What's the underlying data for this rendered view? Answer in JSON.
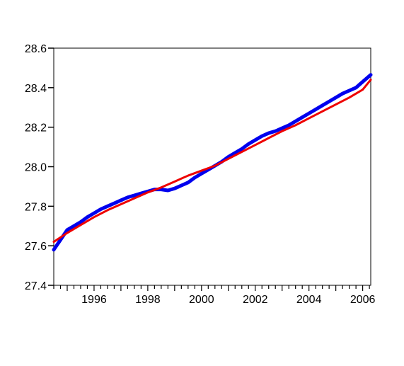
{
  "chart_data": {
    "type": "line",
    "title": "",
    "xlabel": "",
    "ylabel": "",
    "xlim": [
      1994.5,
      2006.3
    ],
    "ylim": [
      27.4,
      28.6
    ],
    "x_tick_labels": [
      "1996",
      "1998",
      "2000",
      "2002",
      "2004",
      "2006"
    ],
    "y_tick_labels": [
      "27.4",
      "27.6",
      "27.8",
      "28.0",
      "28.2",
      "28.4",
      "28.6"
    ],
    "grid": false,
    "legend": "none",
    "series": [
      {
        "color": "#0000ee",
        "x": [
          1994.5,
          1994.75,
          1995.0,
          1995.25,
          1995.5,
          1995.75,
          1996.0,
          1996.25,
          1996.5,
          1996.75,
          1997.0,
          1997.25,
          1997.5,
          1997.75,
          1998.0,
          1998.25,
          1998.5,
          1998.75,
          1999.0,
          1999.25,
          1999.5,
          1999.75,
          2000.0,
          2000.25,
          2000.5,
          2000.75,
          2001.0,
          2001.25,
          2001.5,
          2001.75,
          2002.0,
          2002.25,
          2002.5,
          2002.75,
          2003.0,
          2003.25,
          2003.5,
          2003.75,
          2004.0,
          2004.25,
          2004.5,
          2004.75,
          2005.0,
          2005.25,
          2005.5,
          2005.75,
          2006.0,
          2006.3
        ],
        "y": [
          27.58,
          27.63,
          27.68,
          27.7,
          27.72,
          27.745,
          27.765,
          27.785,
          27.8,
          27.815,
          27.83,
          27.845,
          27.855,
          27.865,
          27.875,
          27.885,
          27.885,
          27.88,
          27.89,
          27.905,
          27.92,
          27.945,
          27.965,
          27.985,
          28.005,
          28.025,
          28.05,
          28.07,
          28.09,
          28.115,
          28.135,
          28.155,
          28.17,
          28.18,
          28.195,
          28.21,
          28.23,
          28.25,
          28.27,
          28.29,
          28.31,
          28.33,
          28.35,
          28.37,
          28.385,
          28.4,
          28.43,
          28.465
        ]
      },
      {
        "color": "#ee0000",
        "x": [
          1994.5,
          1995.0,
          1995.5,
          1996.0,
          1996.5,
          1997.0,
          1997.5,
          1998.0,
          1998.5,
          1999.0,
          1999.5,
          2000.0,
          2000.5,
          2001.0,
          2001.5,
          2002.0,
          2002.5,
          2003.0,
          2003.5,
          2004.0,
          2004.5,
          2005.0,
          2005.5,
          2006.0,
          2006.3
        ],
        "y": [
          27.62,
          27.665,
          27.705,
          27.745,
          27.78,
          27.81,
          27.84,
          27.87,
          27.895,
          27.925,
          27.955,
          27.98,
          28.005,
          28.04,
          28.075,
          28.11,
          28.145,
          28.18,
          28.21,
          28.245,
          28.28,
          28.315,
          28.35,
          28.39,
          28.44
        ]
      }
    ]
  }
}
